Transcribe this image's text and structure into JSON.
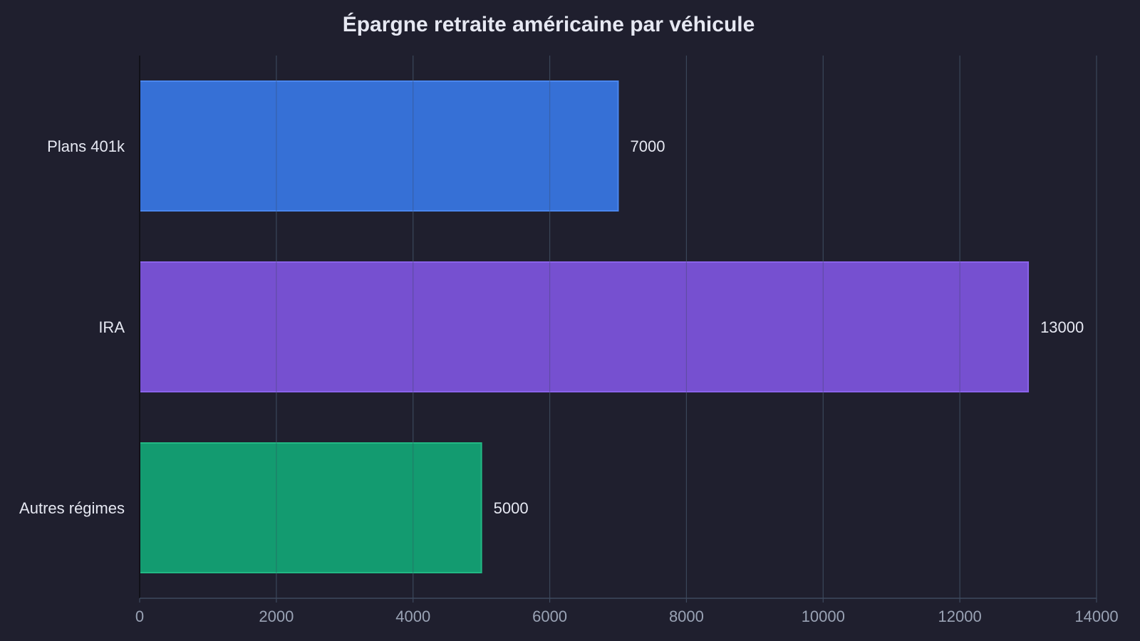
{
  "chart_data": {
    "type": "bar",
    "orientation": "horizontal",
    "title": "Épargne retraite américaine par véhicule",
    "xlabel": "",
    "ylabel": "",
    "categories": [
      "Plans 401k",
      "IRA",
      "Autres régimes"
    ],
    "values": [
      7000,
      13000,
      5000
    ],
    "value_labels": [
      "7000",
      "13000",
      "5000"
    ],
    "colors": [
      "#3670d6",
      "#7650d0",
      "#139b70"
    ],
    "edge_colors": [
      "#4a86ee",
      "#8a63ea",
      "#22b884"
    ],
    "xlim": [
      0,
      14000
    ],
    "x_ticks": [
      0,
      2000,
      4000,
      6000,
      8000,
      10000,
      12000,
      14000
    ],
    "x_tick_labels": [
      "0",
      "2000",
      "4000",
      "6000",
      "8000",
      "10000",
      "12000",
      "14000"
    ],
    "grid": "vertical",
    "legend": "none"
  },
  "theme": {
    "background": "#1f1f2e",
    "grid_color": "#3a4558",
    "axis_color": "#3e4a5e",
    "text_color": "#e6e8f2",
    "tick_color": "#9aa3b5"
  }
}
